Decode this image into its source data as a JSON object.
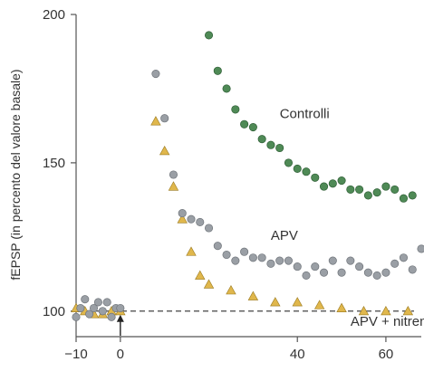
{
  "chart_data": {
    "type": "scatter",
    "title": "",
    "xlabel": "",
    "ylabel": "fEPSP (in percento del valore basale)",
    "xlim": [
      -10,
      68
    ],
    "ylim": [
      92,
      200
    ],
    "x_ticks": [
      -10,
      0,
      40,
      60
    ],
    "y_ticks": [
      100,
      150,
      200
    ],
    "grid": false,
    "legend": "none",
    "baseline": {
      "y": 100,
      "style": "dashed"
    },
    "arrow_at_x": 0,
    "series": [
      {
        "name": "Controlli",
        "marker": "circle",
        "color": "#4f8a56",
        "x": [
          20,
          22,
          24,
          26,
          28,
          30,
          32,
          34,
          36,
          38,
          40,
          42,
          44,
          46,
          48,
          50,
          52,
          54,
          56,
          58,
          60,
          62,
          64,
          66
        ],
        "y": [
          193,
          181,
          175,
          168,
          163,
          162,
          158,
          156,
          155,
          150,
          148,
          147,
          145,
          142,
          143,
          144,
          141,
          141,
          139,
          140,
          142,
          141,
          138,
          139
        ]
      },
      {
        "name": "APV",
        "marker": "circle",
        "color": "#9a9fa5",
        "x": [
          -10,
          -9,
          -8,
          -7,
          -6,
          -5,
          -4,
          -3,
          -2,
          -1,
          0,
          8,
          10,
          12,
          14,
          16,
          18,
          20,
          22,
          24,
          26,
          28,
          30,
          32,
          34,
          36,
          38,
          40,
          42,
          44,
          46,
          48,
          50,
          52,
          54,
          56,
          58,
          60,
          62,
          64,
          66,
          68
        ],
        "y": [
          98,
          101,
          104,
          99,
          101,
          103,
          100,
          103,
          98,
          101,
          101,
          180,
          165,
          146,
          133,
          131,
          130,
          128,
          122,
          119,
          117,
          120,
          118,
          118,
          116,
          117,
          117,
          115,
          112,
          115,
          113,
          117,
          113,
          117,
          115,
          113,
          112,
          113,
          116,
          118,
          114,
          121
        ]
      },
      {
        "name": "APV + nitrendipina",
        "marker": "triangle",
        "color": "#e0b74c",
        "x": [
          -10,
          -8,
          -6,
          -4,
          -2,
          0,
          8,
          10,
          12,
          14,
          16,
          18,
          20,
          25,
          30,
          35,
          40,
          45,
          50,
          55,
          60,
          65
        ],
        "y": [
          101,
          100,
          99,
          99,
          100,
          100,
          164,
          154,
          142,
          131,
          120,
          112,
          109,
          107,
          105,
          103,
          103,
          102,
          101,
          100,
          100,
          100
        ]
      }
    ],
    "annotations": [
      {
        "text": "Controlli",
        "x": 36,
        "y": 165
      },
      {
        "text": "APV",
        "x": 34,
        "y": 124
      },
      {
        "text": "APV + nitrendipina",
        "x": 52,
        "y": 95
      }
    ]
  }
}
